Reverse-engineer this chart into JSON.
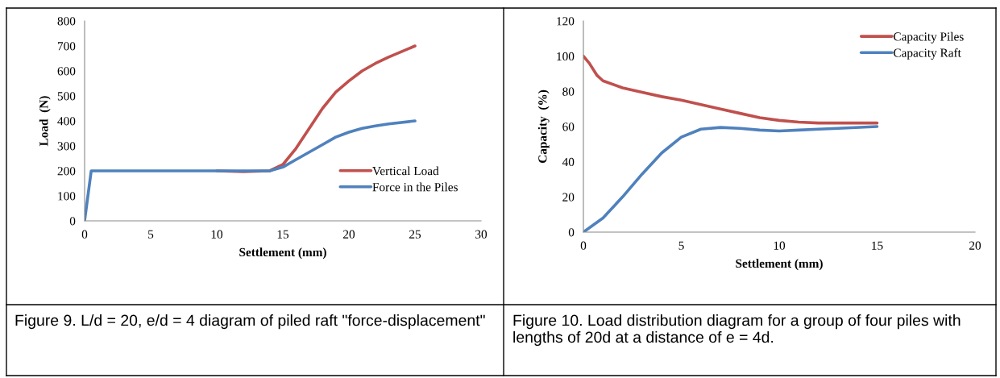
{
  "chart_data": [
    {
      "type": "line",
      "xlabel": "Settlement (mm)",
      "ylabel": "Load  (N)",
      "xlim": [
        0,
        30
      ],
      "ylim": [
        0,
        800
      ],
      "xticks": [
        0,
        5,
        10,
        15,
        20,
        25,
        30
      ],
      "yticks": [
        0,
        100,
        200,
        300,
        400,
        500,
        600,
        700,
        800
      ],
      "grid": false,
      "legend": "right",
      "marker": "none",
      "line_style": "solid",
      "annotations": [
        "Figure 9. L/d = 20, e/d = 4 diagram of piled raft \"force-displacement\""
      ],
      "series": [
        {
          "name": "Vertical Load",
          "color": "#c0504d",
          "x": [
            10,
            12,
            14,
            15,
            16,
            17,
            18,
            19,
            20,
            21,
            22,
            23,
            25
          ],
          "values": [
            200,
            197,
            200,
            225,
            290,
            370,
            450,
            515,
            560,
            600,
            630,
            655,
            700
          ]
        },
        {
          "name": "Force in the Piles",
          "color": "#4f81bd",
          "x": [
            0,
            0.5,
            10,
            14,
            15,
            16,
            17,
            18,
            19,
            20,
            21,
            22,
            23,
            25
          ],
          "values": [
            0,
            200,
            200,
            200,
            215,
            245,
            275,
            305,
            335,
            355,
            370,
            380,
            388,
            400
          ]
        }
      ]
    },
    {
      "type": "line",
      "xlabel": "Settlement (mm)",
      "ylabel": "Capacity  (%)",
      "xlim": [
        0,
        20
      ],
      "ylim": [
        0,
        120
      ],
      "xticks": [
        0,
        5,
        10,
        15,
        20
      ],
      "yticks": [
        0,
        20,
        40,
        60,
        80,
        100,
        120
      ],
      "grid": false,
      "legend": "top right",
      "marker": "none",
      "line_style": "solid",
      "annotations": [
        "Figure 10. Load distribution diagram for a group of four piles with lengths of 20d at a distance of e = 4d."
      ],
      "series": [
        {
          "name": "Capacity Piles",
          "color": "#c0504d",
          "x": [
            0,
            0.3,
            0.7,
            1,
            2,
            3,
            4,
            5,
            6,
            7,
            8,
            9,
            10,
            11,
            12,
            13,
            15
          ],
          "values": [
            100,
            96,
            89,
            86,
            82,
            79.5,
            77,
            75,
            72.5,
            70,
            67.5,
            65,
            63.5,
            62.5,
            62,
            62,
            62
          ]
        },
        {
          "name": "Capacity Raft",
          "color": "#4f81bd",
          "x": [
            0,
            1,
            2,
            3,
            4,
            5,
            6,
            7,
            8,
            9,
            10,
            11,
            12,
            13,
            15
          ],
          "values": [
            0,
            8,
            20,
            33,
            45,
            54,
            58.5,
            59.5,
            59,
            58,
            57.5,
            58,
            58.5,
            59,
            60
          ]
        }
      ]
    }
  ]
}
